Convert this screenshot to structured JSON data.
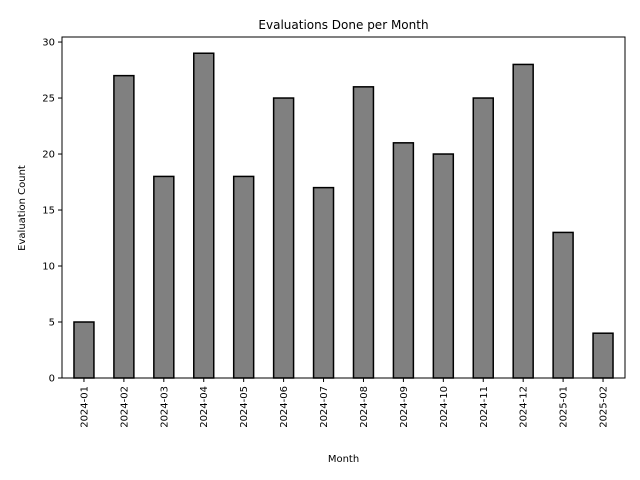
{
  "chart_data": {
    "type": "bar",
    "title": "Evaluations Done per Month",
    "xlabel": "Month",
    "ylabel": "Evaluation Count",
    "categories": [
      "2024-01",
      "2024-02",
      "2024-03",
      "2024-04",
      "2024-05",
      "2024-06",
      "2024-07",
      "2024-08",
      "2024-09",
      "2024-10",
      "2024-11",
      "2024-12",
      "2025-01",
      "2025-02"
    ],
    "values": [
      5,
      27,
      18,
      29,
      18,
      25,
      17,
      26,
      21,
      20,
      25,
      28,
      13,
      4
    ],
    "ylim": [
      0,
      30.45
    ],
    "yticks": [
      0,
      5,
      10,
      15,
      20,
      25,
      30
    ],
    "bar_color": "#808080",
    "edge_color": "#000000",
    "grid": false,
    "legend": "none"
  }
}
